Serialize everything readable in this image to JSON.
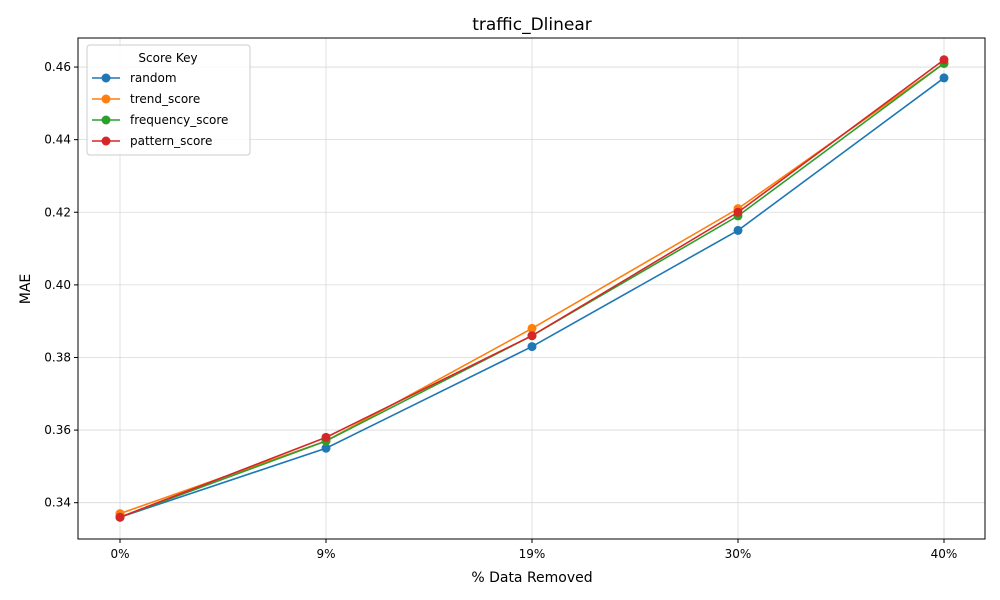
{
  "chart_data": {
    "type": "line",
    "title": "traffic_Dlinear",
    "xlabel": "% Data Removed",
    "ylabel": "MAE",
    "categories": [
      "0%",
      "9%",
      "19%",
      "30%",
      "40%"
    ],
    "ylim": [
      0.33,
      0.468
    ],
    "yticks": [
      0.34,
      0.36,
      0.38,
      0.4,
      0.42,
      0.44,
      0.46
    ],
    "ytick_labels": [
      "0.34",
      "0.36",
      "0.38",
      "0.40",
      "0.42",
      "0.44",
      "0.46"
    ],
    "grid": true,
    "legend": {
      "title": "Score Key",
      "placement": "top-left"
    },
    "series": [
      {
        "name": "random",
        "color": "#1f77b4",
        "values": [
          0.336,
          0.355,
          0.383,
          0.415,
          0.457
        ]
      },
      {
        "name": "trend_score",
        "color": "#ff7f0e",
        "values": [
          0.337,
          0.357,
          0.388,
          0.421,
          0.461
        ]
      },
      {
        "name": "frequency_score",
        "color": "#2ca02c",
        "values": [
          0.336,
          0.357,
          0.386,
          0.419,
          0.461
        ]
      },
      {
        "name": "pattern_score",
        "color": "#d62728",
        "values": [
          0.336,
          0.358,
          0.386,
          0.42,
          0.462
        ]
      }
    ]
  }
}
